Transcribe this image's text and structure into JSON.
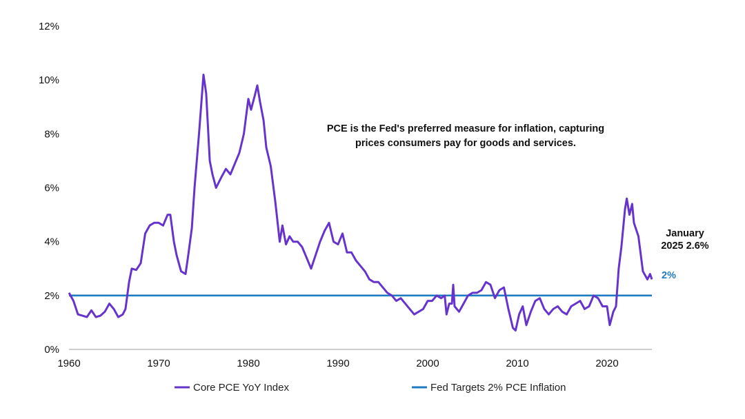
{
  "chart_data": {
    "type": "line",
    "title": "",
    "xlabel": "",
    "ylabel": "",
    "xlim": [
      1960,
      2025
    ],
    "ylim": [
      0,
      12
    ],
    "x_ticks": [
      "1960",
      "1970",
      "1980",
      "1990",
      "2000",
      "2010",
      "2020"
    ],
    "y_ticks": [
      "0%",
      "2%",
      "4%",
      "6%",
      "8%",
      "10%",
      "12%"
    ],
    "grid": false,
    "legend_position": "bottom",
    "annotation": [
      "PCE is the Fed's preferred measure for inflation, capturing",
      "prices consumers pay for goods and services."
    ],
    "end_label": [
      "January",
      "2025 2.6%"
    ],
    "target_label": "2%",
    "series": [
      {
        "name": "Core PCE YoY Index",
        "color": "#6633CC",
        "points": [
          [
            1960,
            2.1
          ],
          [
            1960.5,
            1.8
          ],
          [
            1961,
            1.3
          ],
          [
            1961.5,
            1.25
          ],
          [
            1962,
            1.2
          ],
          [
            1962.5,
            1.45
          ],
          [
            1963,
            1.2
          ],
          [
            1963.5,
            1.25
          ],
          [
            1964,
            1.4
          ],
          [
            1964.5,
            1.7
          ],
          [
            1965,
            1.5
          ],
          [
            1965.5,
            1.2
          ],
          [
            1966,
            1.3
          ],
          [
            1966.3,
            1.5
          ],
          [
            1966.7,
            2.5
          ],
          [
            1967,
            3.0
          ],
          [
            1967.5,
            2.95
          ],
          [
            1968,
            3.2
          ],
          [
            1968.5,
            4.3
          ],
          [
            1969,
            4.6
          ],
          [
            1969.5,
            4.7
          ],
          [
            1970,
            4.7
          ],
          [
            1970.5,
            4.6
          ],
          [
            1971,
            5.0
          ],
          [
            1971.3,
            5.0
          ],
          [
            1971.7,
            4.0
          ],
          [
            1972,
            3.5
          ],
          [
            1972.5,
            2.9
          ],
          [
            1973,
            2.8
          ],
          [
            1973.3,
            3.5
          ],
          [
            1973.7,
            4.5
          ],
          [
            1974,
            6.0
          ],
          [
            1974.5,
            8.0
          ],
          [
            1975,
            10.2
          ],
          [
            1975.3,
            9.5
          ],
          [
            1975.7,
            7.0
          ],
          [
            1976,
            6.5
          ],
          [
            1976.4,
            6.0
          ],
          [
            1977,
            6.4
          ],
          [
            1977.5,
            6.7
          ],
          [
            1978,
            6.5
          ],
          [
            1978.5,
            6.9
          ],
          [
            1979,
            7.3
          ],
          [
            1979.5,
            8.0
          ],
          [
            1980,
            9.3
          ],
          [
            1980.3,
            8.9
          ],
          [
            1980.7,
            9.4
          ],
          [
            1981,
            9.8
          ],
          [
            1981.3,
            9.2
          ],
          [
            1981.7,
            8.5
          ],
          [
            1982,
            7.5
          ],
          [
            1982.5,
            6.8
          ],
          [
            1983,
            5.5
          ],
          [
            1983.5,
            4.0
          ],
          [
            1983.8,
            4.6
          ],
          [
            1984.2,
            3.9
          ],
          [
            1984.6,
            4.2
          ],
          [
            1985,
            4.0
          ],
          [
            1985.5,
            4.0
          ],
          [
            1986,
            3.8
          ],
          [
            1986.5,
            3.4
          ],
          [
            1987,
            3.0
          ],
          [
            1987.5,
            3.5
          ],
          [
            1988,
            4.0
          ],
          [
            1988.5,
            4.4
          ],
          [
            1989,
            4.7
          ],
          [
            1989.5,
            4.0
          ],
          [
            1990,
            3.9
          ],
          [
            1990.5,
            4.3
          ],
          [
            1991,
            3.6
          ],
          [
            1991.5,
            3.6
          ],
          [
            1992,
            3.3
          ],
          [
            1992.5,
            3.1
          ],
          [
            1993,
            2.9
          ],
          [
            1993.5,
            2.6
          ],
          [
            1994,
            2.5
          ],
          [
            1994.5,
            2.5
          ],
          [
            1995,
            2.3
          ],
          [
            1995.5,
            2.1
          ],
          [
            1996,
            2.0
          ],
          [
            1996.5,
            1.8
          ],
          [
            1997,
            1.9
          ],
          [
            1997.5,
            1.7
          ],
          [
            1998,
            1.5
          ],
          [
            1998.5,
            1.3
          ],
          [
            1999,
            1.4
          ],
          [
            1999.5,
            1.5
          ],
          [
            2000,
            1.8
          ],
          [
            2000.5,
            1.8
          ],
          [
            2001,
            2.0
          ],
          [
            2001.5,
            1.9
          ],
          [
            2001.9,
            2.0
          ],
          [
            2002.1,
            1.3
          ],
          [
            2002.4,
            1.7
          ],
          [
            2002.7,
            1.7
          ],
          [
            2002.85,
            2.4
          ],
          [
            2003,
            1.6
          ],
          [
            2003.5,
            1.4
          ],
          [
            2004,
            1.7
          ],
          [
            2004.5,
            2.0
          ],
          [
            2005,
            2.1
          ],
          [
            2005.5,
            2.1
          ],
          [
            2006,
            2.2
          ],
          [
            2006.5,
            2.5
          ],
          [
            2007,
            2.4
          ],
          [
            2007.5,
            1.9
          ],
          [
            2008,
            2.2
          ],
          [
            2008.5,
            2.3
          ],
          [
            2009,
            1.5
          ],
          [
            2009.5,
            0.8
          ],
          [
            2009.8,
            0.7
          ],
          [
            2010.2,
            1.3
          ],
          [
            2010.6,
            1.6
          ],
          [
            2011,
            0.9
          ],
          [
            2011.5,
            1.4
          ],
          [
            2012,
            1.8
          ],
          [
            2012.5,
            1.9
          ],
          [
            2013,
            1.5
          ],
          [
            2013.5,
            1.3
          ],
          [
            2014,
            1.5
          ],
          [
            2014.5,
            1.6
          ],
          [
            2015,
            1.4
          ],
          [
            2015.5,
            1.3
          ],
          [
            2016,
            1.6
          ],
          [
            2016.5,
            1.7
          ],
          [
            2017,
            1.8
          ],
          [
            2017.5,
            1.5
          ],
          [
            2018,
            1.6
          ],
          [
            2018.5,
            2.0
          ],
          [
            2019,
            1.9
          ],
          [
            2019.5,
            1.6
          ],
          [
            2020,
            1.6
          ],
          [
            2020.3,
            0.9
          ],
          [
            2020.7,
            1.4
          ],
          [
            2021,
            1.6
          ],
          [
            2021.3,
            3.0
          ],
          [
            2021.6,
            3.8
          ],
          [
            2022,
            5.2
          ],
          [
            2022.2,
            5.6
          ],
          [
            2022.5,
            5.0
          ],
          [
            2022.8,
            5.4
          ],
          [
            2023,
            4.7
          ],
          [
            2023.5,
            4.2
          ],
          [
            2024,
            2.9
          ],
          [
            2024.5,
            2.6
          ],
          [
            2024.8,
            2.8
          ],
          [
            2025,
            2.6
          ]
        ]
      },
      {
        "name": "Fed Targets 2% PCE Inflation",
        "color": "#1F7BBF",
        "points": [
          [
            1960,
            2
          ],
          [
            2025,
            2
          ]
        ]
      }
    ]
  }
}
